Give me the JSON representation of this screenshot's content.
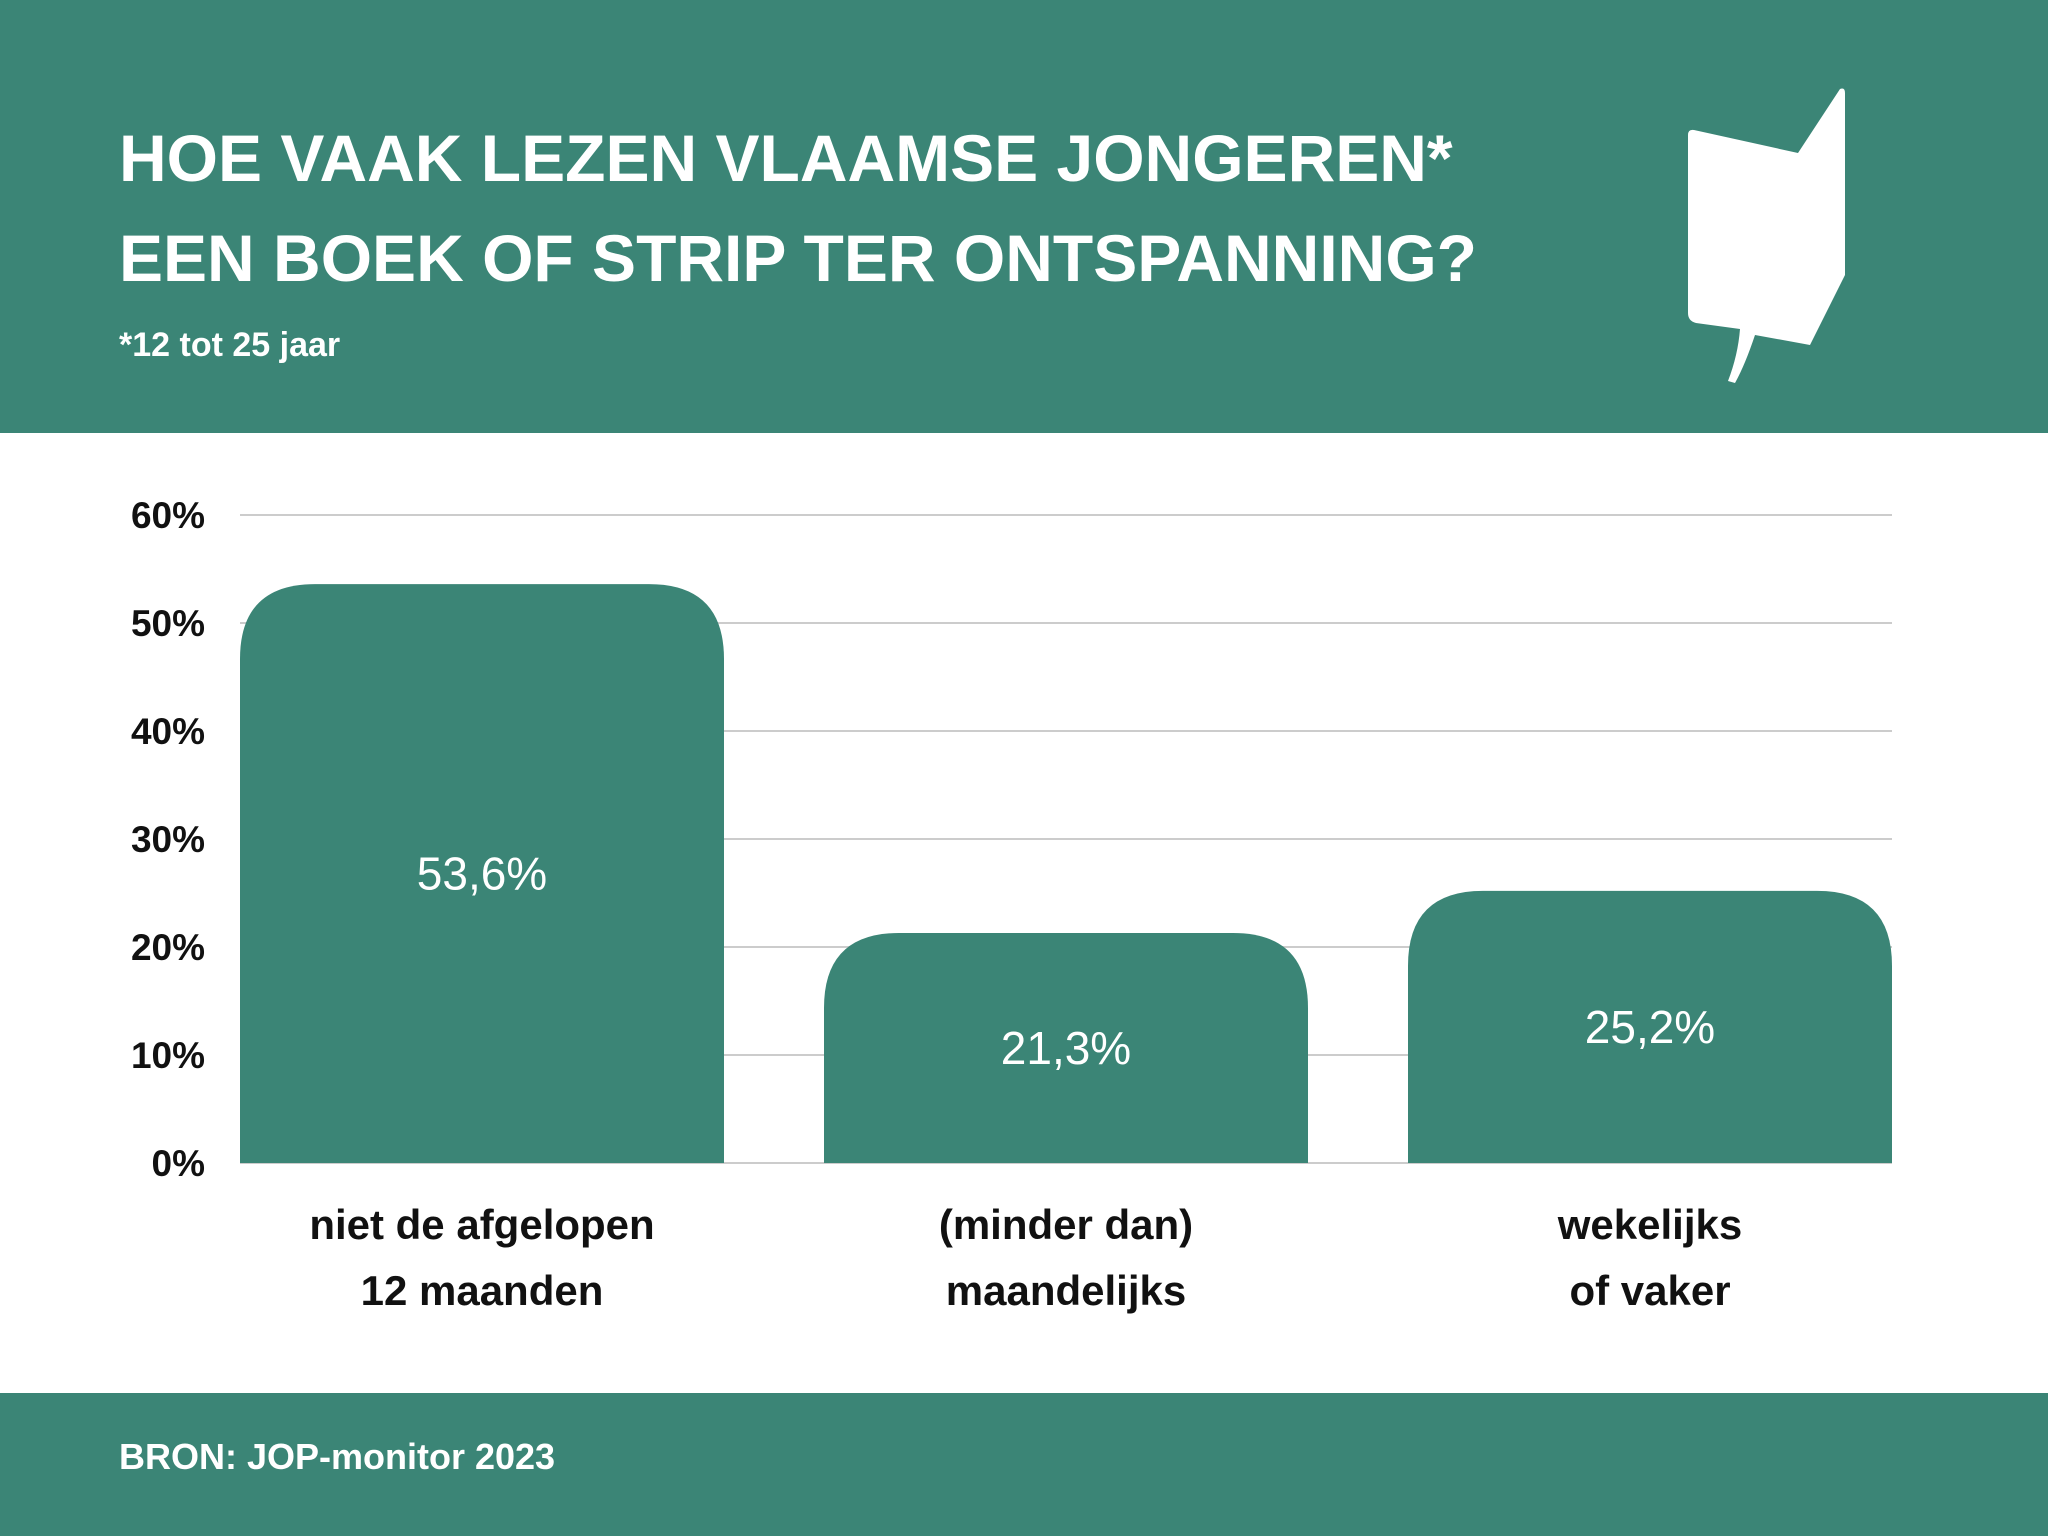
{
  "header": {
    "title_lines": [
      "HOE VAAK LEZEN VLAAMSE JONGEREN*",
      "EEN BOEK OF STRIP TER ONTSPANNING?"
    ],
    "subtitle": "*12 tot 25 jaar",
    "logo_icon": "book-speech-bubble-icon"
  },
  "chart_data": {
    "type": "bar",
    "categories": [
      [
        "niet de afgelopen",
        "12 maanden"
      ],
      [
        "(minder dan)",
        "maandelijks"
      ],
      [
        "wekelijks",
        "of vaker"
      ]
    ],
    "values": [
      53.6,
      21.3,
      25.2
    ],
    "value_labels": [
      "53,6%",
      "21,3%",
      "25,2%"
    ],
    "yticks": [
      0,
      10,
      20,
      30,
      40,
      50,
      60
    ],
    "ytick_labels": [
      "0%",
      "10%",
      "20%",
      "30%",
      "40%",
      "50%",
      "60%"
    ],
    "ylim": [
      0,
      60
    ],
    "grid": true,
    "legend": "none"
  },
  "footer": {
    "source": "BRON: JOP-monitor 2023"
  },
  "colors": {
    "accent": "#3b8576",
    "grid": "#cccccc",
    "text": "#111111",
    "on_accent": "#ffffff"
  }
}
